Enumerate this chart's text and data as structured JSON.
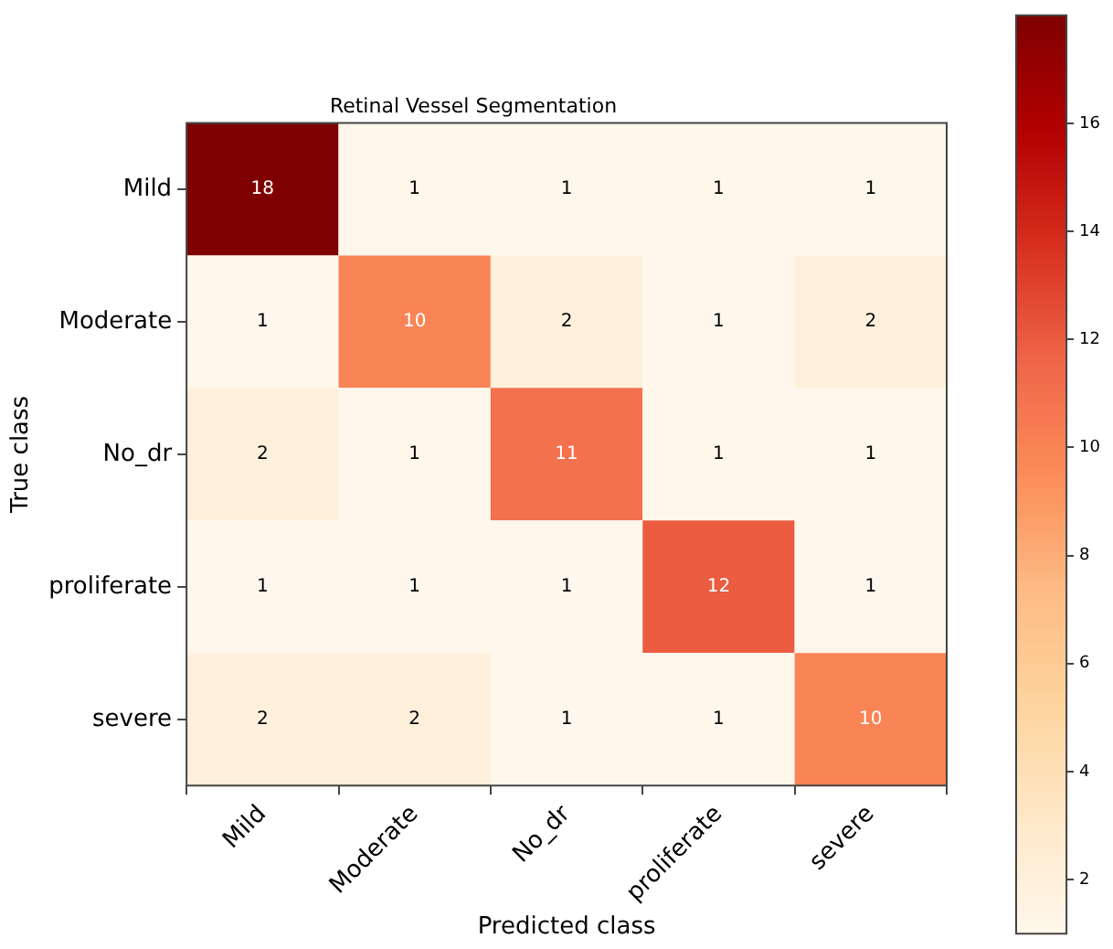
{
  "chart_data": {
    "type": "heatmap",
    "title": "Retinal Vessel Segmentation",
    "xlabel": "Predicted class",
    "ylabel": "True class",
    "categories": [
      "Mild",
      "Moderate",
      "No_dr",
      "proliferate",
      "severe"
    ],
    "y_categories": [
      "Mild",
      "Moderate",
      "No_dr",
      "proliferate",
      "severe"
    ],
    "cells": [
      [
        18,
        1,
        1,
        1,
        1
      ],
      [
        1,
        10,
        2,
        1,
        2
      ],
      [
        2,
        1,
        11,
        1,
        1
      ],
      [
        1,
        1,
        1,
        12,
        1
      ],
      [
        2,
        2,
        1,
        1,
        10
      ]
    ],
    "data_labels": true,
    "clim": [
      1,
      18
    ],
    "cticks": [
      2,
      4,
      6,
      8,
      10,
      12,
      14,
      16
    ]
  }
}
